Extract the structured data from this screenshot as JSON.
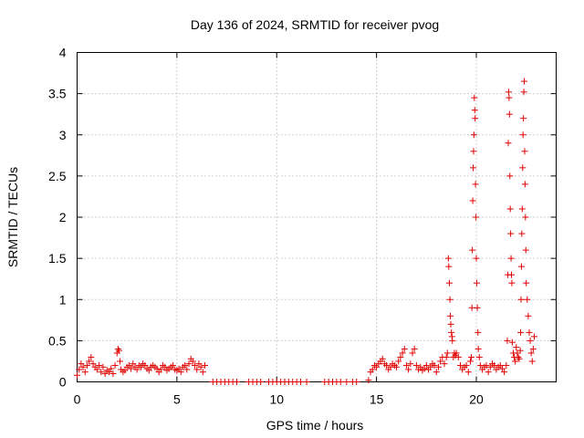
{
  "chart_data": {
    "type": "scatter",
    "title": "Day 136 of 2024, SRMTID for receiver pvog",
    "xlabel": "GPS time / hours",
    "ylabel": "SRMTID / TECUs",
    "xlim": [
      0,
      24
    ],
    "ylim": [
      0,
      4
    ],
    "xticks": [
      0,
      5,
      10,
      15,
      20
    ],
    "yticks": [
      0,
      0.5,
      1,
      1.5,
      2,
      2.5,
      3,
      3.5,
      4
    ],
    "xtick_labels": [
      "0",
      "5",
      "10",
      "15",
      "20"
    ],
    "ytick_labels": [
      "0",
      "0.5",
      "1",
      "1.5",
      "2",
      "2.5",
      "3",
      "3.5",
      "4"
    ],
    "grid": true,
    "marker": "+",
    "color": "#e00000",
    "series": [
      {
        "name": "SRMTID",
        "x": [
          0.0,
          0.1,
          0.2,
          0.3,
          0.4,
          0.5,
          0.6,
          0.7,
          0.8,
          0.9,
          1.0,
          1.1,
          1.2,
          1.3,
          1.4,
          1.5,
          1.6,
          1.7,
          1.8,
          1.9,
          2.0,
          2.05,
          2.1,
          2.15,
          2.2,
          2.3,
          2.4,
          2.5,
          2.6,
          2.7,
          2.8,
          2.9,
          3.0,
          3.1,
          3.2,
          3.3,
          3.4,
          3.5,
          3.6,
          3.7,
          3.8,
          3.9,
          4.0,
          4.1,
          4.2,
          4.3,
          4.4,
          4.5,
          4.6,
          4.7,
          4.8,
          4.9,
          5.0,
          5.1,
          5.2,
          5.3,
          5.4,
          5.5,
          5.6,
          5.7,
          5.8,
          5.9,
          6.0,
          6.1,
          6.2,
          6.3,
          6.4,
          6.8,
          7.0,
          7.2,
          7.4,
          7.6,
          7.8,
          8.0,
          8.6,
          8.8,
          9.0,
          9.2,
          9.6,
          9.8,
          10.0,
          10.2,
          10.4,
          10.6,
          10.8,
          11.0,
          11.2,
          11.5,
          12.4,
          12.6,
          12.8,
          13.0,
          13.2,
          13.5,
          13.8,
          14.0,
          14.6,
          14.7,
          14.8,
          14.9,
          15.0,
          15.1,
          15.2,
          15.3,
          15.4,
          15.5,
          15.6,
          15.7,
          15.8,
          15.9,
          16.0,
          16.1,
          16.2,
          16.3,
          16.4,
          16.5,
          16.6,
          16.7,
          16.8,
          16.9,
          17.0,
          17.1,
          17.2,
          17.3,
          17.4,
          17.5,
          17.6,
          17.7,
          17.8,
          17.9,
          18.0,
          18.1,
          18.2,
          18.3,
          18.4,
          18.5,
          18.55,
          18.6,
          18.62,
          18.65,
          18.68,
          18.7,
          18.72,
          18.75,
          18.78,
          18.8,
          18.85,
          18.9,
          18.95,
          19.0,
          19.1,
          19.2,
          19.3,
          19.4,
          19.5,
          19.6,
          19.7,
          19.75,
          19.78,
          19.8,
          19.82,
          19.84,
          19.86,
          19.88,
          19.9,
          19.92,
          19.94,
          19.96,
          19.98,
          20.0,
          20.02,
          20.05,
          20.08,
          20.1,
          20.15,
          20.2,
          20.3,
          20.4,
          20.5,
          20.6,
          20.7,
          20.8,
          20.9,
          21.0,
          21.1,
          21.2,
          21.3,
          21.4,
          21.5,
          21.55,
          21.58,
          21.6,
          21.62,
          21.64,
          21.66,
          21.68,
          21.7,
          21.72,
          21.74,
          21.76,
          21.78,
          21.8,
          21.85,
          21.9,
          21.95,
          22.0,
          22.05,
          22.1,
          22.15,
          22.2,
          22.22,
          22.24,
          22.26,
          22.28,
          22.3,
          22.32,
          22.34,
          22.36,
          22.38,
          22.4,
          22.42,
          22.44,
          22.46,
          22.48,
          22.5,
          22.55,
          22.6,
          22.65,
          22.7,
          22.75,
          22.8,
          22.85,
          22.9
        ],
        "y": [
          0.08,
          0.15,
          0.22,
          0.18,
          0.12,
          0.2,
          0.25,
          0.3,
          0.22,
          0.18,
          0.15,
          0.2,
          0.12,
          0.18,
          0.1,
          0.14,
          0.12,
          0.16,
          0.1,
          0.2,
          0.35,
          0.4,
          0.38,
          0.25,
          0.15,
          0.12,
          0.14,
          0.18,
          0.2,
          0.16,
          0.22,
          0.18,
          0.15,
          0.2,
          0.18,
          0.22,
          0.2,
          0.16,
          0.14,
          0.18,
          0.2,
          0.18,
          0.16,
          0.12,
          0.15,
          0.2,
          0.18,
          0.14,
          0.16,
          0.18,
          0.2,
          0.15,
          0.14,
          0.16,
          0.12,
          0.18,
          0.2,
          0.15,
          0.22,
          0.28,
          0.25,
          0.2,
          0.15,
          0.22,
          0.18,
          0.12,
          0.2,
          0,
          0,
          0,
          0,
          0,
          0,
          0,
          0,
          0,
          0,
          0,
          0,
          0,
          0,
          0,
          0,
          0,
          0,
          0,
          0,
          0,
          0,
          0,
          0,
          0,
          0,
          0,
          0,
          0,
          0.02,
          0.12,
          0.15,
          0.2,
          0.18,
          0.22,
          0.25,
          0.28,
          0.22,
          0.2,
          0.15,
          0.18,
          0.22,
          0.2,
          0.18,
          0.25,
          0.3,
          0.35,
          0.4,
          0.2,
          0.15,
          0.22,
          0.35,
          0.4,
          0.2,
          0.15,
          0.18,
          0.14,
          0.16,
          0.2,
          0.15,
          0.18,
          0.22,
          0.2,
          0.12,
          0.18,
          0.25,
          0.3,
          0.22,
          0.3,
          0.35,
          1.5,
          1.4,
          1.2,
          1.0,
          0.8,
          0.7,
          0.6,
          0.55,
          0.5,
          0.3,
          0.35,
          0.32,
          0.35,
          0.3,
          0.2,
          0.15,
          0.18,
          0.2,
          0.12,
          0.25,
          0.3,
          0.9,
          1.6,
          2.2,
          2.6,
          2.8,
          3.0,
          3.45,
          3.3,
          3.2,
          2.4,
          2.0,
          1.5,
          1.2,
          0.9,
          0.6,
          0.4,
          0.3,
          0.2,
          0.15,
          0.18,
          0.2,
          0.12,
          0.18,
          0.22,
          0.2,
          0.15,
          0.18,
          0.2,
          0.16,
          0.12,
          0.2,
          0.5,
          1.3,
          2.9,
          3.52,
          3.45,
          3.25,
          2.5,
          2.1,
          1.8,
          1.5,
          1.3,
          1.2,
          0.48,
          0.35,
          0.3,
          0.25,
          0.42,
          0.35,
          0.3,
          0.28,
          0.38,
          0.6,
          1.0,
          1.4,
          1.8,
          2.1,
          2.6,
          3.0,
          3.2,
          3.52,
          3.65,
          2.8,
          2.4,
          2.0,
          1.6,
          1.2,
          1.0,
          0.8,
          0.6,
          0.5,
          0.35,
          0.25,
          0.4,
          0.55
        ]
      }
    ]
  }
}
